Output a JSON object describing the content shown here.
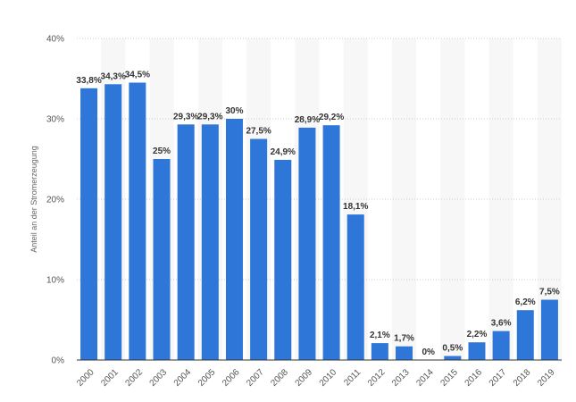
{
  "chart_data": {
    "type": "bar",
    "ylabel": "Anteil an der Stromerzeugung",
    "xlabel": "",
    "title": "",
    "ylim": [
      0,
      40
    ],
    "y_ticks": [
      0,
      10,
      20,
      30,
      40
    ],
    "y_tick_labels": [
      "0%",
      "10%",
      "20%",
      "30%",
      "40%"
    ],
    "grid": true,
    "categories": [
      "2000",
      "2001",
      "2002",
      "2003",
      "2004",
      "2005",
      "2006",
      "2007",
      "2008",
      "2009",
      "2010",
      "2011",
      "2012",
      "2013",
      "2014",
      "2015",
      "2016",
      "2017",
      "2018",
      "2019"
    ],
    "values": [
      33.8,
      34.3,
      34.5,
      25,
      29.3,
      29.3,
      30,
      27.5,
      24.9,
      28.9,
      29.2,
      18.1,
      2.1,
      1.7,
      0,
      0.5,
      2.2,
      3.6,
      6.2,
      7.5
    ],
    "value_labels": [
      "33,8%",
      "34,3%",
      "34,5%",
      "25%",
      "29,3%",
      "29,3%",
      "30%",
      "27,5%",
      "24,9%",
      "28,9%",
      "29,2%",
      "18,1%",
      "2,1%",
      "1,7%",
      "0%",
      "0,5%",
      "2,2%",
      "3,6%",
      "6,2%",
      "7,5%"
    ],
    "colors": {
      "bar": "#2e77d9",
      "band": "#f7f7f7",
      "grid": "#cccccc",
      "axis": "#333333"
    }
  }
}
